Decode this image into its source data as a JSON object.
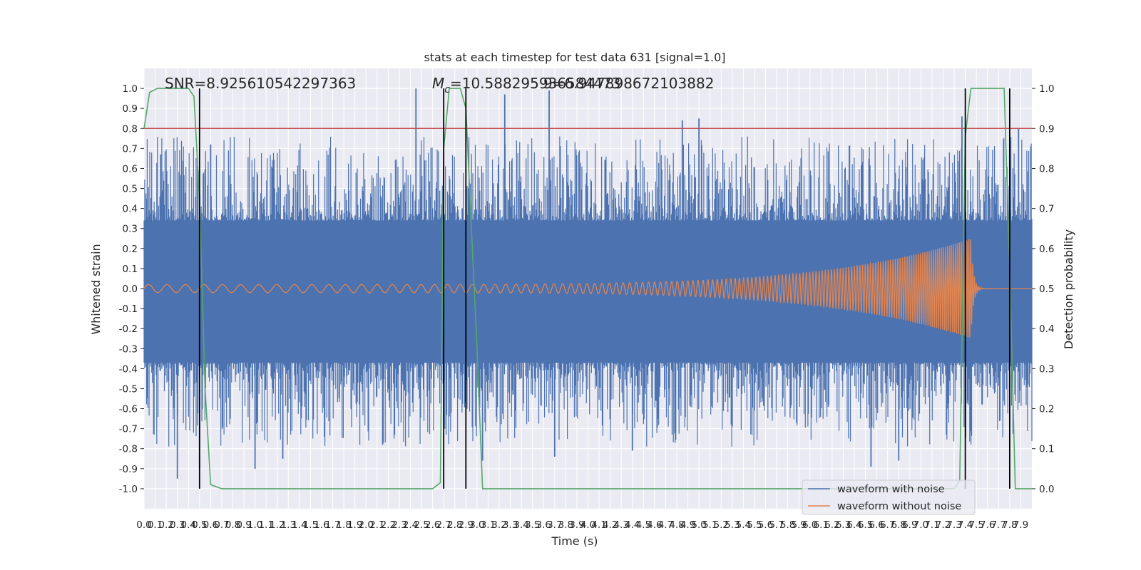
{
  "chart_data": {
    "type": "line",
    "title": "stats at each timestep for test data 631 [signal=1.0]",
    "xlabel": "Time (s)",
    "ylabel_left": "Whitened strain",
    "ylabel_right": "Detection probability",
    "xlim": [
      0.0,
      8.0
    ],
    "ylim_left": [
      -1.1,
      1.1
    ],
    "ylim_right": [
      -0.05,
      1.05
    ],
    "x_tick_labels": [
      "0.0",
      "0.1",
      "0.2",
      "0.3",
      "0.4",
      "0.5",
      "0.6",
      "0.7",
      "0.8",
      "0.9",
      "1.0",
      "1.1",
      "1.2",
      "1.3",
      "1.4",
      "1.5",
      "1.6",
      "1.7",
      "1.8",
      "1.9",
      "2.0",
      "2.1",
      "2.2",
      "2.3",
      "2.4",
      "2.5",
      "2.6",
      "2.7",
      "2.8",
      "2.9",
      "3.0",
      "3.1",
      "3.2",
      "3.3",
      "3.4",
      "3.5",
      "3.6",
      "3.7",
      "3.8",
      "3.9",
      "4.0",
      "4.1",
      "4.2",
      "4.3",
      "4.4",
      "4.5",
      "4.6",
      "4.7",
      "4.8",
      "4.9",
      "5.0",
      "5.1",
      "5.2",
      "5.3",
      "5.4",
      "5.5",
      "5.6",
      "5.7",
      "5.8",
      "5.9",
      "6.0",
      "6.1",
      "6.2",
      "6.3",
      "6.4",
      "6.5",
      "6.6",
      "6.7",
      "6.8",
      "6.9",
      "7.0",
      "7.1",
      "7.2",
      "7.3",
      "7.4",
      "7.5",
      "7.6",
      "7.7",
      "7.8",
      "7.9"
    ],
    "y_tick_labels_left": [
      "1.0",
      "0.9",
      "0.8",
      "0.7",
      "0.6",
      "0.5",
      "0.4",
      "0.3",
      "0.2",
      "0.1",
      "0.0",
      "-0.1",
      "-0.2",
      "-0.3",
      "-0.4",
      "-0.5",
      "-0.6",
      "-0.7",
      "-0.8",
      "-0.9",
      "-1.0"
    ],
    "y_tick_labels_right": [
      "1.0",
      "0.9",
      "0.8",
      "0.7",
      "0.6",
      "0.5",
      "0.4",
      "0.3",
      "0.2",
      "0.1",
      "0.0"
    ],
    "annotations": {
      "snr": "SNR=8.925610542297363",
      "mc_symbol": "M",
      "mc_subscript": "c",
      "mc_value": "=10.588295936584473",
      "mc_overlap": "9=6.947898672103882"
    },
    "threshold": {
      "value": 0.9,
      "axis": "right",
      "color": "#c44e52"
    },
    "detection_probability": {
      "name": "Detection probability",
      "color": "#55a868",
      "x": [
        0.0,
        0.05,
        0.12,
        0.2,
        0.3,
        0.4,
        0.45,
        0.5,
        0.55,
        0.6,
        0.7,
        2.6,
        2.67,
        2.7,
        2.75,
        2.85,
        2.9,
        3.0,
        3.05,
        3.1,
        7.3,
        7.35,
        7.4,
        7.45,
        7.5,
        7.6,
        7.7,
        7.75,
        7.8,
        7.85,
        7.9,
        8.0
      ],
      "y": [
        0.9,
        0.99,
        1.0,
        1.0,
        1.0,
        1.0,
        0.98,
        0.72,
        0.25,
        0.01,
        0.0,
        0.0,
        0.015,
        0.85,
        1.0,
        1.0,
        0.95,
        0.35,
        0.0,
        0.0,
        0.0,
        0.02,
        0.88,
        1.0,
        1.0,
        1.0,
        1.0,
        1.0,
        0.55,
        0.0,
        0.0,
        0.0
      ]
    },
    "vlines": [
      0.5,
      2.7,
      2.9,
      7.4,
      7.8
    ],
    "vline_color": "#000000",
    "series": [
      {
        "name": "waveform with noise",
        "color": "#4c72b0",
        "envelope": {
          "x": [
            0.0,
            8.0
          ],
          "lower": -0.37,
          "upper": 0.34
        },
        "spikes_up": {
          "x": [
            0.15,
            0.6,
            2.45,
            3.25,
            3.65,
            4.85,
            5.0,
            7.37,
            7.88
          ],
          "y": [
            0.67,
            0.72,
            1.0,
            0.97,
            0.99,
            0.84,
            0.85,
            0.86,
            0.8
          ]
        },
        "spikes_down": {
          "x": [
            0.3,
            0.5,
            1.0,
            1.25,
            2.15,
            3.05,
            3.7,
            4.4,
            6.55,
            6.8
          ],
          "y": [
            -0.95,
            -0.9,
            -0.9,
            -0.85,
            -0.78,
            -0.86,
            -0.84,
            -0.81,
            -0.89,
            -0.86
          ]
        }
      },
      {
        "name": "waveform without noise",
        "color": "#dd8452",
        "chirp": {
          "start_x": 0.0,
          "merger_x": 7.45,
          "end_x": 8.0,
          "start_amplitude": 0.02,
          "peak_amplitude": 0.25,
          "start_frequency": 6.0,
          "end_frequency": 60.0
        }
      }
    ],
    "legend": {
      "position": "lower-right",
      "entries": [
        "waveform with noise",
        "waveform without noise"
      ]
    },
    "grid": true,
    "background": "#eaeaf2",
    "grid_color": "#ffffff"
  }
}
